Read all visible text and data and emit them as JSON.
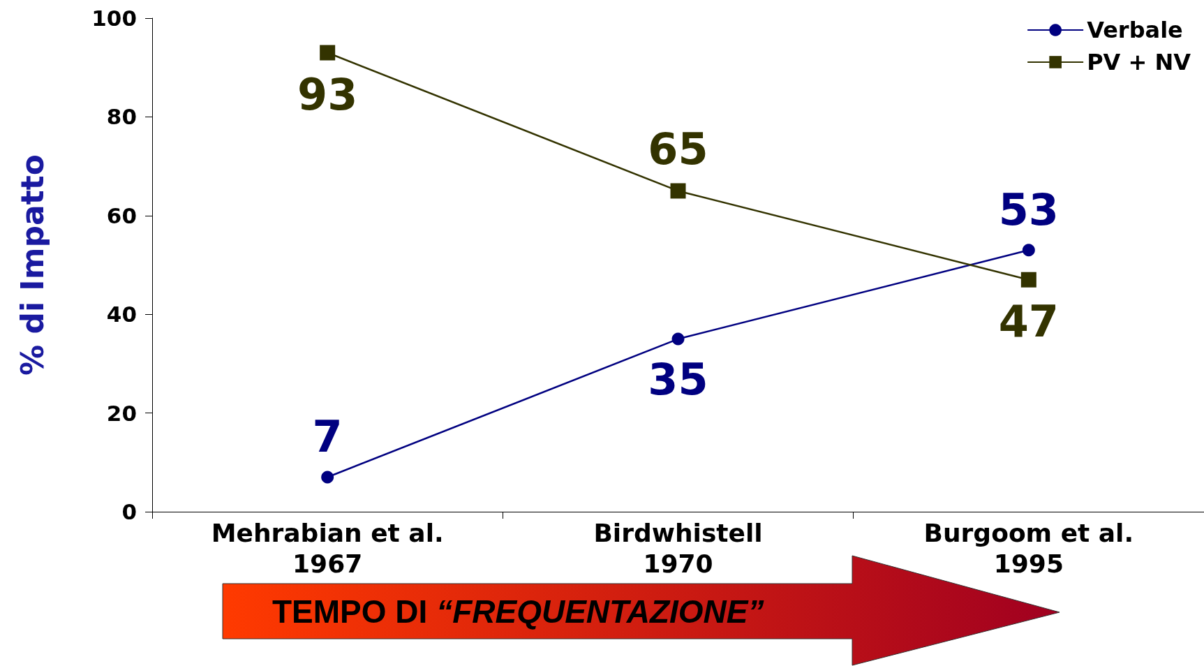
{
  "chart_data": {
    "type": "line",
    "ylabel": "% di Impatto",
    "categories": [
      "Mehrabian et al. 1967",
      "Birdwhistell 1970",
      "Burgoom et al. 1995"
    ],
    "series": [
      {
        "name": "Verbale",
        "color": "#000080",
        "values": [
          7,
          35,
          53
        ],
        "marker": "circle"
      },
      {
        "name": "PV + NV",
        "color": "#333300",
        "values": [
          93,
          65,
          47
        ],
        "marker": "square"
      }
    ],
    "ylim": [
      0,
      100
    ],
    "yticks": [
      0,
      20,
      40,
      60,
      80,
      100
    ],
    "grid": false,
    "legend": "top right",
    "data_labels": true,
    "line_style": "solid",
    "annotations": [
      "TEMPO DI “FREQUENTAZIONE”"
    ]
  }
}
